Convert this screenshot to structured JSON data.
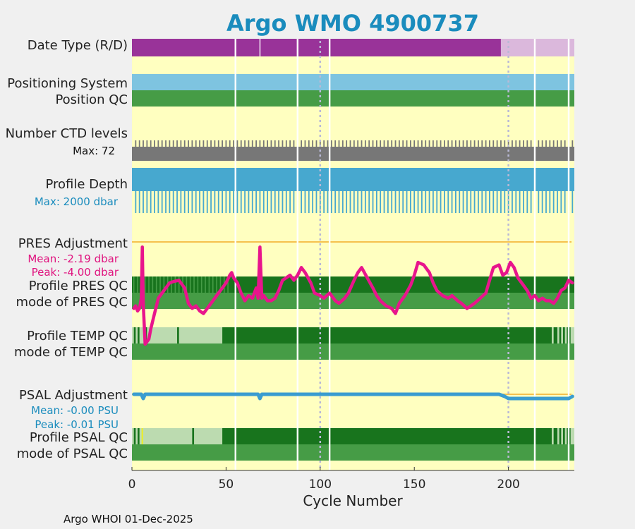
{
  "chart_data": {
    "type": "heatmap",
    "title": "Argo WMO 4900737",
    "xlabel": "Cycle Number",
    "xlim": [
      0,
      235
    ],
    "xticks": [
      0,
      50,
      100,
      150,
      200
    ],
    "xtick_labels": [
      "0",
      "50",
      "100",
      "150",
      "200"
    ],
    "vertical_reference_lines": [
      100,
      200
    ],
    "footer": "Argo WHOI 01-Dec-2025",
    "colors": {
      "background_yellow": "#ffffc0",
      "purple_realtime": "#993399",
      "purple_delayed": "#dbb8dc",
      "positioning_blue": "#7ec4e0",
      "good_green": "#469c46",
      "dark_green": "#18741d",
      "light_green": "#bcdbb0",
      "gray_levels": "#777777",
      "depth_blue": "#47a8cf",
      "pres_magenta": "#e8158c",
      "psal_blue": "#3a9cd0",
      "orange_zero": "#f5c14e",
      "title_blue": "#1a8cbd"
    },
    "missing_cycles": [
      55,
      88,
      105,
      214,
      232
    ],
    "rows": {
      "date_type": {
        "label": "Date Type (R/D)",
        "realtime_until": 196,
        "delayed_from": 196,
        "thin_gaps": [
          68
        ]
      },
      "positioning_system": {
        "label": "Positioning System"
      },
      "position_qc": {
        "label": "Position QC"
      },
      "number_ctd_levels": {
        "label": "Number CTD levels",
        "max_label": "Max: 72"
      },
      "profile_depth": {
        "label": "Profile Depth",
        "max_label": "Max: 2000 dbar"
      },
      "pres_adjustment": {
        "label": "PRES Adjustment",
        "mean_label": "Mean: -2.19 dbar",
        "peak_label": "Peak: -4.00 dbar"
      },
      "profile_pres_qc": {
        "label": "Profile PRES QC"
      },
      "mode_pres_qc": {
        "label": "mode of PRES QC"
      },
      "profile_temp_qc": {
        "label": "Profile TEMP QC"
      },
      "mode_temp_qc": {
        "label": "mode of TEMP QC"
      },
      "psal_adjustment": {
        "label": "PSAL Adjustment",
        "mean_label": "Mean: -0.00 PSU",
        "peak_label": "Peak: -0.01 PSU"
      },
      "profile_psal_qc": {
        "label": "Profile PSAL QC"
      },
      "mode_psal_qc": {
        "label": "mode of PSAL QC"
      }
    },
    "pres_adjustment_series": {
      "name": "PRES Adjustment",
      "x": [
        1,
        2,
        3,
        4,
        5,
        5.5,
        6,
        7,
        8,
        9,
        10,
        12,
        14,
        16,
        18,
        20,
        22,
        25,
        28,
        30,
        32,
        34,
        36,
        38,
        40,
        42,
        44,
        46,
        48,
        50,
        52,
        53,
        54,
        56,
        58,
        60,
        62,
        64,
        66,
        67,
        68,
        69,
        70,
        72,
        74,
        76,
        78,
        80,
        82,
        84,
        86,
        88,
        90,
        92,
        95,
        97,
        100,
        102,
        105,
        108,
        110,
        113,
        115,
        118,
        120,
        122,
        125,
        128,
        130,
        132,
        135,
        138,
        140,
        142,
        145,
        148,
        150,
        152,
        155,
        158,
        160,
        162,
        165,
        168,
        170,
        173,
        175,
        178,
        180,
        182,
        185,
        188,
        190,
        192,
        195,
        197,
        199,
        201,
        203,
        205,
        208,
        210,
        212,
        214,
        216,
        218,
        220,
        222,
        224,
        226,
        228,
        230,
        232,
        234
      ],
      "y": [
        -2.6,
        -2.5,
        -2.7,
        -2.6,
        -2.2,
        -0.2,
        -2.4,
        -4.0,
        -3.9,
        -3.8,
        -3.4,
        -2.8,
        -2.2,
        -2.0,
        -1.8,
        -1.6,
        -1.55,
        -1.5,
        -1.8,
        -2.4,
        -2.6,
        -2.5,
        -2.7,
        -2.8,
        -2.6,
        -2.4,
        -2.2,
        -2.0,
        -1.8,
        -1.6,
        -1.3,
        -1.2,
        -1.4,
        -1.6,
        -2.0,
        -2.3,
        -2.1,
        -2.2,
        -1.8,
        -2.2,
        -0.2,
        -2.2,
        -2.1,
        -2.3,
        -2.3,
        -2.2,
        -1.9,
        -1.5,
        -1.4,
        -1.3,
        -1.5,
        -1.3,
        -1.0,
        -1.2,
        -1.6,
        -2.0,
        -2.1,
        -2.2,
        -2.0,
        -2.3,
        -2.4,
        -2.2,
        -2.0,
        -1.5,
        -1.2,
        -1.0,
        -1.4,
        -1.8,
        -2.1,
        -2.3,
        -2.5,
        -2.6,
        -2.8,
        -2.4,
        -2.1,
        -1.7,
        -1.3,
        -0.8,
        -0.9,
        -1.2,
        -1.6,
        -1.9,
        -2.1,
        -2.2,
        -2.1,
        -2.3,
        -2.4,
        -2.6,
        -2.5,
        -2.4,
        -2.2,
        -2.0,
        -1.5,
        -1.0,
        -0.9,
        -1.3,
        -1.2,
        -0.8,
        -1.0,
        -1.4,
        -1.7,
        -1.9,
        -2.2,
        -2.1,
        -2.3,
        -2.2,
        -2.3,
        -2.3,
        -2.4,
        -2.2,
        -1.9,
        -1.8,
        -1.5,
        -1.6
      ]
    },
    "psal_adjustment_series": {
      "name": "PSAL Adjustment",
      "x": [
        1,
        5,
        6,
        7,
        10,
        50,
        60,
        67,
        68,
        69,
        75,
        100,
        150,
        195,
        198,
        200,
        232,
        234
      ],
      "y": [
        0.0,
        0.0,
        -0.01,
        0.0,
        0.0,
        0.0,
        0.0,
        0.0,
        -0.01,
        0.0,
        0.0,
        0.0,
        0.0,
        0.0,
        -0.005,
        -0.01,
        -0.01,
        -0.005
      ]
    }
  }
}
